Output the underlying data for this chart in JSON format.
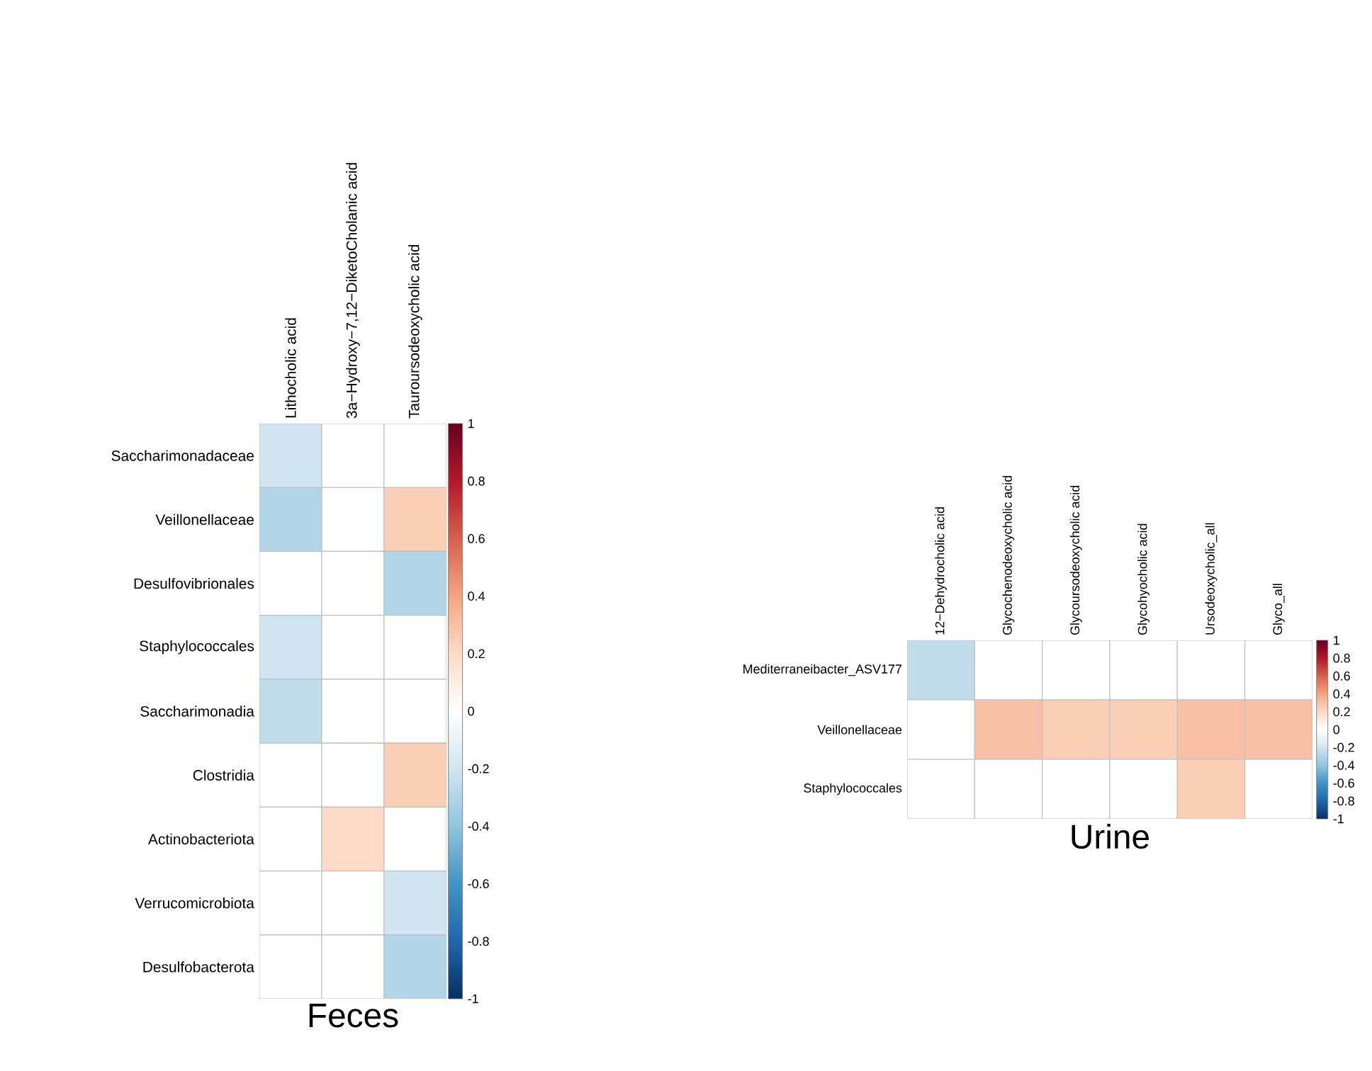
{
  "chart_data": [
    {
      "type": "heatmap",
      "title": "Feces",
      "categories": [
        "Lithocholic acid",
        "3a−Hydroxy−7,12−DiketoCholanic acid",
        "Tauroursodeoxycholic acid"
      ],
      "y_categories": [
        "Saccharimonadaceae",
        "Veillonellaceae",
        "Desulfovibrionales",
        "Staphylococcales",
        "Saccharimonadia",
        "Clostridia",
        "Actinobacteriota",
        "Verrucomicrobiota",
        "Desulfobacterota"
      ],
      "cells": [
        [
          -0.2,
          null,
          null
        ],
        [
          -0.3,
          null,
          0.25
        ],
        [
          null,
          null,
          -0.3
        ],
        [
          -0.2,
          null,
          null
        ],
        [
          -0.25,
          null,
          null
        ],
        [
          null,
          null,
          0.25
        ],
        [
          null,
          0.2,
          null
        ],
        [
          null,
          null,
          -0.2
        ],
        [
          null,
          null,
          -0.3
        ]
      ],
      "clim": [
        -1,
        1
      ],
      "cticks": [
        -1,
        -0.8,
        -0.6,
        -0.4,
        -0.2,
        0,
        0.2,
        0.4,
        0.6,
        0.8,
        1
      ]
    },
    {
      "type": "heatmap",
      "title": "Urine",
      "categories": [
        "12−Dehydrocholic acid",
        "Glycochenodeoxycholic acid",
        "Glycoursodeoxycholic acid",
        "Glycohyocholic acid",
        "Ursodeoxycholic_all",
        "Glyco_all"
      ],
      "y_categories": [
        "Mediterraneibacter_ASV177",
        "Veillonellaceae",
        "Staphylococcales"
      ],
      "cells": [
        [
          -0.25,
          null,
          null,
          null,
          null,
          null
        ],
        [
          null,
          0.3,
          0.25,
          0.25,
          0.3,
          0.3
        ],
        [
          null,
          null,
          null,
          null,
          0.25,
          null
        ]
      ],
      "clim": [
        -1,
        1
      ],
      "cticks": [
        -1,
        -0.8,
        -0.6,
        -0.4,
        -0.2,
        0,
        0.2,
        0.4,
        0.6,
        0.8,
        1
      ]
    }
  ]
}
